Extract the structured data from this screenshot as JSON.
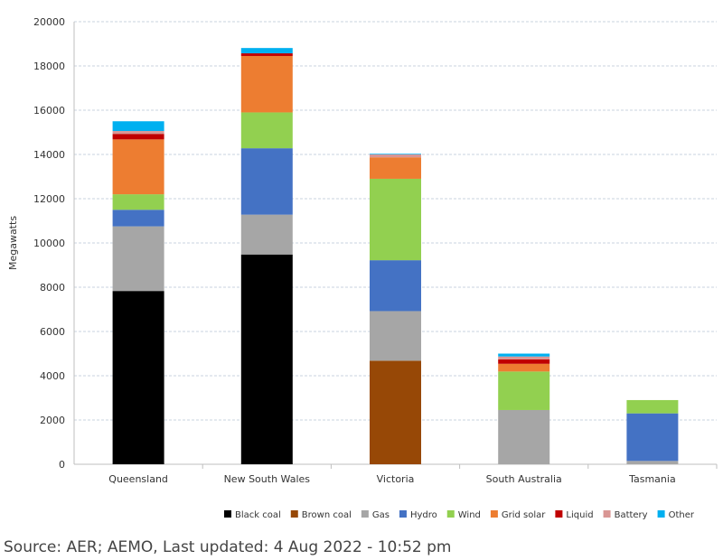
{
  "chart_data": {
    "type": "bar",
    "stacked": true,
    "title": "",
    "xlabel": "",
    "ylabel": "Megawatts",
    "ylim": [
      0,
      20000
    ],
    "yticks": [
      0,
      2000,
      4000,
      6000,
      8000,
      10000,
      12000,
      14000,
      16000,
      18000,
      20000
    ],
    "grid": "horizontal dashed",
    "legend_position": "bottom-right",
    "categories": [
      "Queensland",
      "New South Wales",
      "Victoria",
      "South Australia",
      "Tasmania"
    ],
    "series": [
      {
        "name": "Black coal",
        "color": "#000000",
        "values": [
          7830,
          9480,
          0,
          0,
          0
        ]
      },
      {
        "name": "Brown coal",
        "color": "#974806",
        "values": [
          0,
          0,
          4680,
          0,
          0
        ]
      },
      {
        "name": "Gas",
        "color": "#a6a6a6",
        "values": [
          2920,
          1800,
          2240,
          2450,
          150
        ]
      },
      {
        "name": "Hydro",
        "color": "#4472c4",
        "values": [
          750,
          3000,
          2300,
          0,
          2150
        ]
      },
      {
        "name": "Wind",
        "color": "#92d050",
        "values": [
          700,
          1620,
          3680,
          1740,
          600
        ]
      },
      {
        "name": "Grid solar",
        "color": "#ed7d31",
        "values": [
          2480,
          2550,
          970,
          350,
          0
        ]
      },
      {
        "name": "Liquid",
        "color": "#c00000",
        "values": [
          250,
          120,
          0,
          200,
          0
        ]
      },
      {
        "name": "Battery",
        "color": "#d99694",
        "values": [
          130,
          0,
          130,
          130,
          0
        ]
      },
      {
        "name": "Other",
        "color": "#00b0f0",
        "values": [
          440,
          240,
          30,
          130,
          0
        ]
      }
    ]
  },
  "source_text": "Source: AER; AEMO, Last updated: 4 Aug 2022 - 10:52 pm"
}
